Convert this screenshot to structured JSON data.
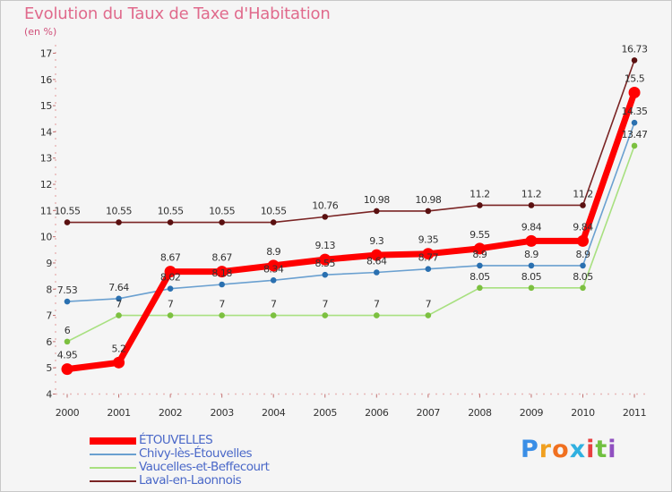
{
  "title": "Evolution du Taux de Taxe d'Habitation",
  "unit_label": "(en %)",
  "logo": {
    "letters": [
      "P",
      "r",
      "o",
      "x",
      "i",
      "t",
      "i"
    ],
    "colors": [
      "#3a8ee6",
      "#f0a020",
      "#f07020",
      "#30b0e0",
      "#e84040",
      "#70c040",
      "#9050c0"
    ]
  },
  "chart_data": {
    "type": "line",
    "categories": [
      "2000",
      "2001",
      "2002",
      "2003",
      "2004",
      "2005",
      "2006",
      "2007",
      "2008",
      "2009",
      "2010",
      "2011"
    ],
    "ylim": [
      4,
      17
    ],
    "yticks": [
      "4",
      "5",
      "6",
      "7",
      "8",
      "9",
      "10",
      "11",
      "12",
      "13",
      "14",
      "15",
      "16",
      "17"
    ],
    "grid": false,
    "legend_position": "bottom-left",
    "series": [
      {
        "name": "Laval-en-Laonnois",
        "color": "#7a2424",
        "marker": "#5a1010",
        "values": [
          10.55,
          10.55,
          10.55,
          10.55,
          10.55,
          10.76,
          10.98,
          10.98,
          11.2,
          11.2,
          11.2,
          16.73
        ],
        "labels": [
          "10.55",
          "10.55",
          "10.55",
          "10.55",
          "10.55",
          "10.76",
          "10.98",
          "10.98",
          "11.2",
          "11.2",
          "11.2",
          "16.73"
        ]
      },
      {
        "name": "Vaucelles-et-Beffecourt",
        "color": "#a8e080",
        "marker": "#7cc040",
        "values": [
          6,
          7,
          7,
          7,
          7,
          7,
          7,
          7,
          8.05,
          8.05,
          8.05,
          13.47
        ],
        "labels": [
          "6",
          "7",
          "7",
          "7",
          "7",
          "7",
          "7",
          "7",
          "8.05",
          "8.05",
          "8.05",
          "13.47"
        ]
      },
      {
        "name": "Chivy-lès-Étouvelles",
        "color": "#6aa0d0",
        "marker": "#2a70b0",
        "values": [
          7.53,
          7.64,
          8.02,
          8.18,
          8.34,
          8.55,
          8.64,
          8.77,
          8.9,
          8.9,
          8.9,
          14.35
        ],
        "labels": [
          "7.53",
          "7.64",
          "8.02",
          "8.18",
          "8.34",
          "8.55",
          "8.64",
          "8.77",
          "8.9",
          "8.9",
          "8.9",
          "14.35"
        ]
      },
      {
        "name": "ÉTOUVELLES",
        "color": "#ff0000",
        "marker": "#ff0000",
        "values": [
          4.95,
          5.2,
          8.67,
          8.67,
          8.9,
          9.13,
          9.3,
          9.35,
          9.55,
          9.84,
          9.84,
          15.5
        ],
        "labels": [
          "4.95",
          "5.2",
          "8.67",
          "8.67",
          "8.9",
          "9.13",
          "9.3",
          "9.35",
          "9.55",
          "9.84",
          "9.84",
          "15.5"
        ]
      }
    ],
    "legend": [
      "ÉTOUVELLES",
      "Chivy-lès-Étouvelles",
      "Vaucelles-et-Beffecourt",
      "Laval-en-Laonnois"
    ]
  }
}
